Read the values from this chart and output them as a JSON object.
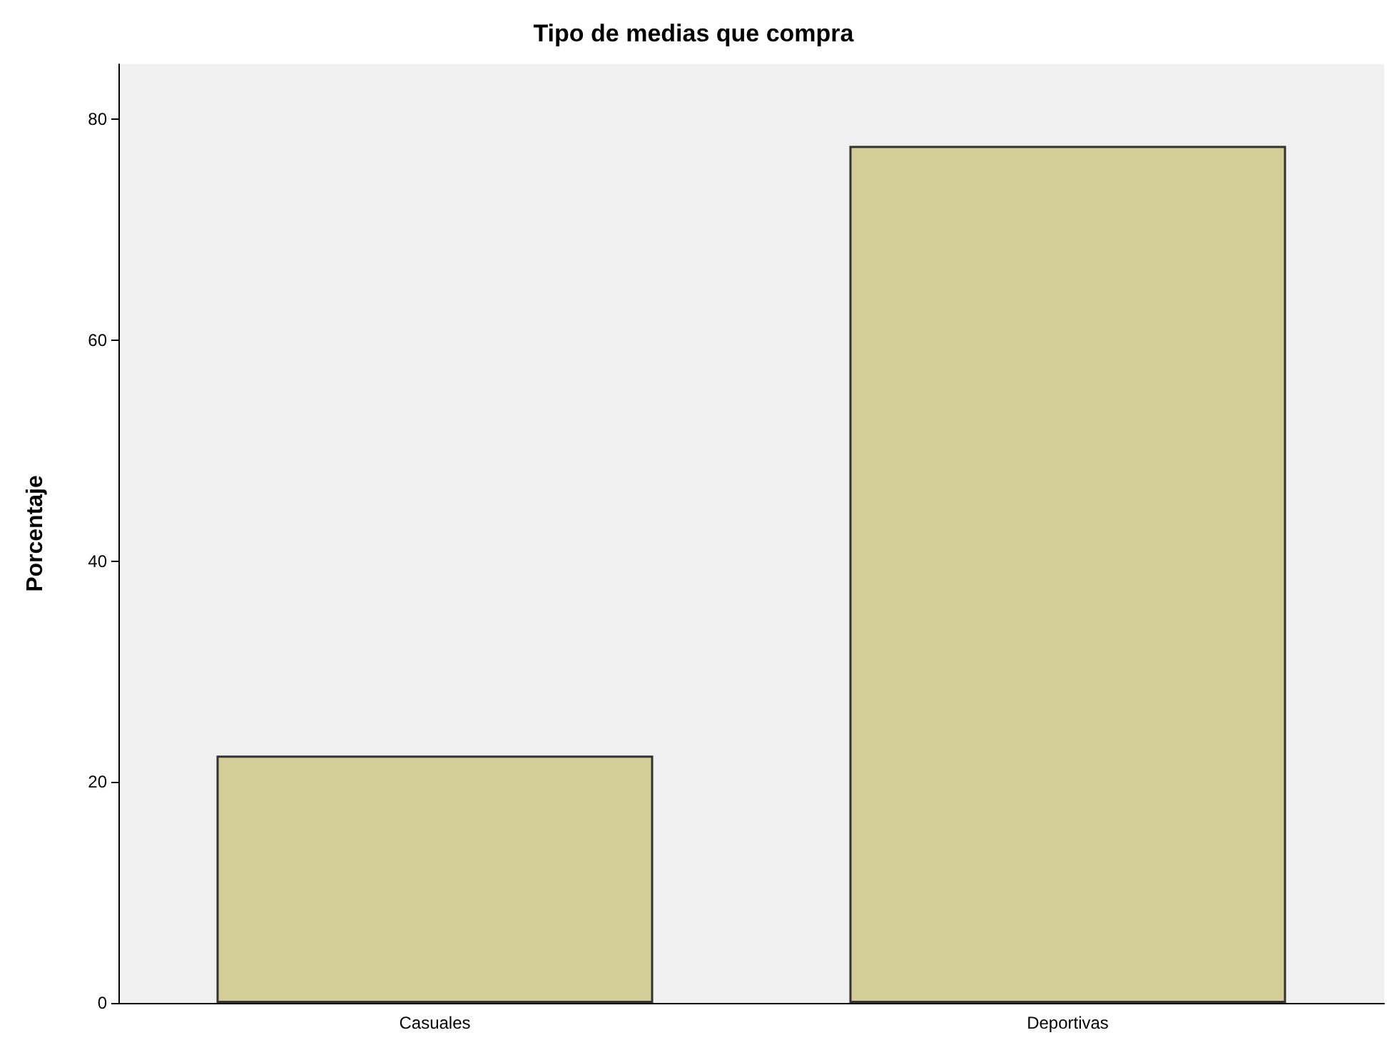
{
  "chart_data": {
    "type": "bar",
    "title": "Tipo de medias que compra",
    "ylabel": "Porcentaje",
    "categories": [
      "Casuales",
      "Deportivas"
    ],
    "values": [
      22.4,
      77.6
    ],
    "color": "#d3cd98",
    "ylim": [
      0,
      85
    ],
    "yticks": [
      0,
      20,
      40,
      60,
      80
    ],
    "grid": false
  }
}
